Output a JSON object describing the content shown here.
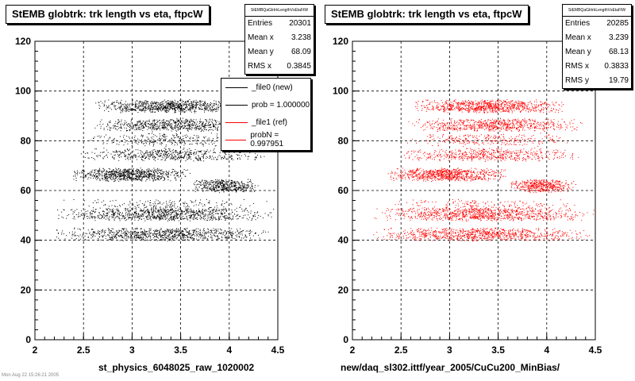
{
  "chart_data": [
    {
      "type": "scatter",
      "title": "StEMB globtrk: trk length vs eta, ftpcW",
      "xlabel": "st_physics_6048025_raw_1020002",
      "ylabel": "",
      "xlim": [
        2,
        4.5
      ],
      "ylim": [
        0,
        120
      ],
      "x_ticks": [
        "2",
        "2.5",
        "3",
        "3.5",
        "4",
        "4.5"
      ],
      "y_ticks": [
        "0",
        "20",
        "40",
        "60",
        "80",
        "100",
        "120"
      ],
      "grid": true,
      "color": "#000000",
      "stats": {
        "name": "StEMBQaGlrtrkLengthVsEtaFtW",
        "rows": [
          {
            "label": "Entries",
            "value": "20301"
          },
          {
            "label": "Mean x",
            "value": "3.238"
          },
          {
            "label": "Mean y",
            "value": "68.09"
          },
          {
            "label": "RMS x",
            "value": "0.3845"
          }
        ]
      },
      "legend": {
        "position": "top-right",
        "entries": [
          {
            "label": "_file0 (new)",
            "color": "#000000"
          },
          {
            "label": "prob = 1.000000",
            "color": "#000000"
          },
          {
            "label": "_file1 (ref)",
            "color": "#ff0000"
          },
          {
            "label": "probN = 0.997951",
            "color": "#ff0000"
          }
        ]
      },
      "bands": [
        {
          "y": 42.5,
          "x_min": 2.15,
          "x_max": 4.45,
          "density": 1.0
        },
        {
          "y": 50.5,
          "x_min": 2.2,
          "x_max": 4.5,
          "density": 1.0
        },
        {
          "y": 54,
          "x_min": 2.25,
          "x_max": 4.4,
          "density": 0.25
        },
        {
          "y": 62,
          "x_min": 3.6,
          "x_max": 4.3,
          "density": 0.5
        },
        {
          "y": 66.5,
          "x_min": 2.35,
          "x_max": 3.6,
          "density": 0.9
        },
        {
          "y": 74.5,
          "x_min": 2.45,
          "x_max": 4.4,
          "density": 0.6
        },
        {
          "y": 80.5,
          "x_min": 2.5,
          "x_max": 4.3,
          "density": 0.3
        },
        {
          "y": 86.5,
          "x_min": 2.55,
          "x_max": 4.4,
          "density": 0.8
        },
        {
          "y": 94,
          "x_min": 2.6,
          "x_max": 4.2,
          "density": 1.0
        }
      ]
    },
    {
      "type": "scatter",
      "title": "StEMB globtrk: trk length vs eta, ftpcW",
      "xlabel": "new/daq_sl302.ittf/year_2005/CuCu200_MinBias/",
      "ylabel": "",
      "xlim": [
        2,
        4.5
      ],
      "ylim": [
        0,
        120
      ],
      "x_ticks": [
        "2",
        "2.5",
        "3",
        "3.5",
        "4",
        "4.5"
      ],
      "y_ticks": [
        "0",
        "20",
        "40",
        "60",
        "80",
        "100",
        "120"
      ],
      "grid": true,
      "color": "#ff0000",
      "stats": {
        "name": "StEMBQaGlrtrkLengthVsEtaFtW",
        "rows": [
          {
            "label": "Entries",
            "value": "20285"
          },
          {
            "label": "Mean x",
            "value": "3.239"
          },
          {
            "label": "Mean y",
            "value": "68.13"
          },
          {
            "label": "RMS x",
            "value": "0.3833"
          },
          {
            "label": "RMS y",
            "value": "19.79"
          }
        ]
      },
      "bands": [
        {
          "y": 42.5,
          "x_min": 2.15,
          "x_max": 4.45,
          "density": 1.0
        },
        {
          "y": 50.5,
          "x_min": 2.2,
          "x_max": 4.5,
          "density": 1.0
        },
        {
          "y": 54,
          "x_min": 2.25,
          "x_max": 4.4,
          "density": 0.25
        },
        {
          "y": 62,
          "x_min": 3.6,
          "x_max": 4.3,
          "density": 0.5
        },
        {
          "y": 66.5,
          "x_min": 2.35,
          "x_max": 3.6,
          "density": 0.9
        },
        {
          "y": 74.5,
          "x_min": 2.45,
          "x_max": 4.4,
          "density": 0.6
        },
        {
          "y": 80.5,
          "x_min": 2.5,
          "x_max": 4.3,
          "density": 0.3
        },
        {
          "y": 86.5,
          "x_min": 2.55,
          "x_max": 4.4,
          "density": 0.8
        },
        {
          "y": 94,
          "x_min": 2.6,
          "x_max": 4.2,
          "density": 1.0
        }
      ]
    }
  ],
  "footnote": "Mon Aug 22 15:26:21 2005"
}
